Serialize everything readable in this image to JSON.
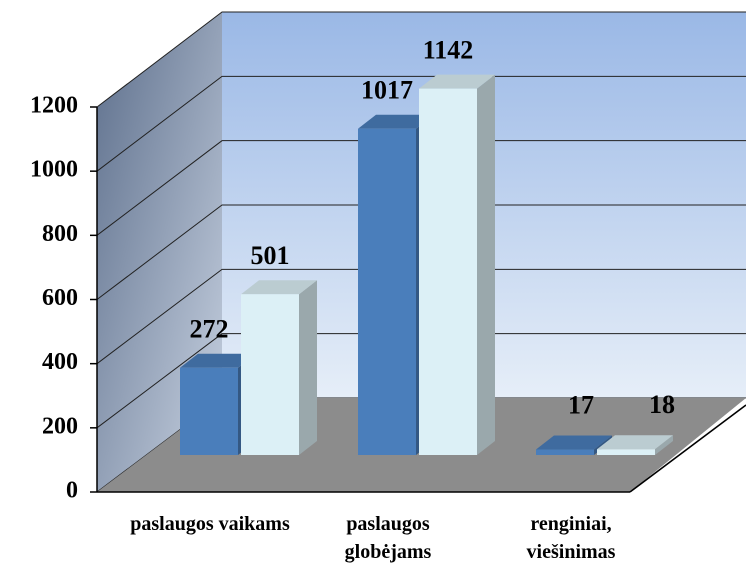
{
  "chart_data": {
    "type": "bar3d",
    "categories": [
      "paslaugos vaikams",
      "paslaugos globėjams",
      "renginiai, viešinimas"
    ],
    "series": [
      {
        "color": "#4a7ebb",
        "values": [
          272,
          1017,
          17
        ]
      },
      {
        "color": "#dcf0f6",
        "values": [
          501,
          1142,
          18
        ]
      }
    ],
    "ylim": [
      0,
      1200
    ],
    "yticks": [
      0,
      200,
      400,
      600,
      800,
      1000,
      1200
    ],
    "grid": true
  }
}
